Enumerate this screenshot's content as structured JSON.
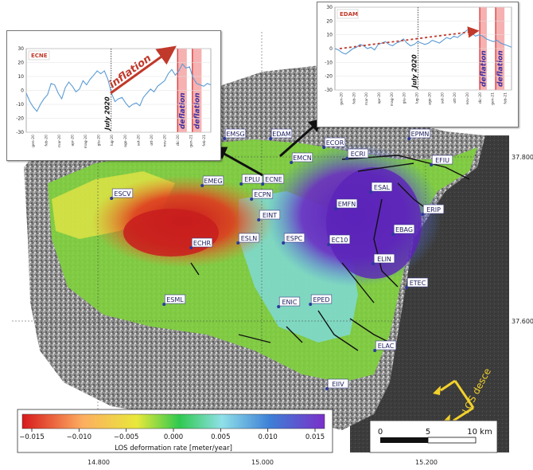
{
  "map": {
    "lat_labels": [
      "37.800",
      "37.600"
    ],
    "lon_labels": [
      "14.800",
      "15.000",
      "15.200"
    ],
    "stations": [
      "EMSG",
      "EDAM",
      "EPMN",
      "ECOR",
      "ECRI",
      "EMCN",
      "EFIU",
      "EMEG",
      "EPLU",
      "ECNE",
      "ECPN",
      "ESCV",
      "ESAL",
      "ERIP",
      "EMFN",
      "EINT",
      "EBAG",
      "ESLN",
      "ESPC",
      "EC10",
      "ECHR",
      "ELIN",
      "ETEC",
      "ESML",
      "ENIC",
      "EPED",
      "ELAC",
      "EIIV"
    ],
    "los_arrow_label": "LOS desce"
  },
  "colorbar": {
    "ticks": [
      "−0.015",
      "−0.010",
      "−0.005",
      "0.000",
      "0.005",
      "0.010",
      "0.015"
    ],
    "label": "LOS deformation rate [meter/year]",
    "colors": [
      "#d7191c",
      "#fdae61",
      "#e8e83a",
      "#2fc94f",
      "#8fe0e8",
      "#3d7fd6",
      "#7b2fc9"
    ]
  },
  "scalebar": {
    "labels": [
      "0",
      "5",
      "10 km"
    ]
  },
  "chart_data": [
    {
      "type": "line",
      "title": "ECNE",
      "ylim": [
        -30,
        30
      ],
      "yticks": [
        "30",
        "20",
        "10",
        "0",
        "-10",
        "-20",
        "-30"
      ],
      "months": [
        "gen-20",
        "feb-20",
        "mar-20",
        "apr-20",
        "mag-20",
        "giu-20",
        "lug-20",
        "ago-20",
        "set-20",
        "ott-20",
        "nov-20",
        "dic-20",
        "gen-21",
        "feb-21"
      ],
      "y": [
        -2,
        -8,
        -12,
        -15,
        -10,
        -6,
        -3,
        5,
        4,
        -2,
        -6,
        2,
        6,
        3,
        -1,
        1,
        7,
        4,
        8,
        11,
        14,
        12,
        14,
        8,
        -2,
        -8,
        -6,
        -5,
        -9,
        -12,
        -10,
        -9,
        -11,
        -5,
        -2,
        1,
        -1,
        3,
        5,
        7,
        12,
        15,
        11,
        14,
        19,
        16,
        17,
        9,
        5,
        4,
        3,
        5,
        4
      ],
      "july_label": "July 2020",
      "annotation": "inflation",
      "deflation_label": "deflation"
    },
    {
      "type": "line",
      "title": "EDAM",
      "ylim": [
        -30,
        30
      ],
      "yticks": [
        "30",
        "20",
        "10",
        "0",
        "-10",
        "-20",
        "-30"
      ],
      "months": [
        "gen-20",
        "feb-20",
        "mar-20",
        "apr-20",
        "mag-20",
        "giu-20",
        "lug-20",
        "ago-20",
        "set-20",
        "ott-20",
        "nov-20",
        "dic-20",
        "gen-21",
        "feb-21"
      ],
      "y": [
        0,
        -1,
        -3,
        -4,
        -2,
        0,
        1,
        3,
        2,
        0,
        1,
        -1,
        3,
        4,
        5,
        3,
        2,
        4,
        5,
        7,
        4,
        2,
        3,
        5,
        4,
        3,
        4,
        6,
        5,
        4,
        6,
        8,
        7,
        9,
        8,
        10,
        12,
        14,
        11,
        9,
        10,
        9,
        7,
        6,
        5,
        6,
        4,
        3,
        2,
        1
      ],
      "july_label": "July 2020",
      "deflation_label": "deflation"
    }
  ]
}
